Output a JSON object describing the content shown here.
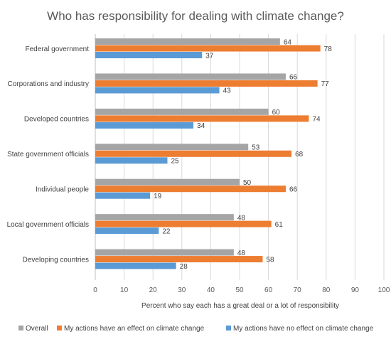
{
  "chart_data": {
    "type": "bar",
    "orientation": "horizontal",
    "title": "Who has responsibility for dealing with climate change?",
    "xlabel": "Percent who say each has a great deal or a lot of responsibility",
    "ylabel": "",
    "xlim": [
      0,
      100
    ],
    "xticks": [
      0,
      10,
      20,
      30,
      40,
      50,
      60,
      70,
      80,
      90,
      100
    ],
    "grid": "vertical",
    "legend_position": "bottom",
    "categories": [
      "Federal government",
      "Corporations and industry",
      "Developed countries",
      "State government officials",
      "Individual people",
      "Local government officials",
      "Developing countries"
    ],
    "series": [
      {
        "name": "Overall",
        "color": "#a5a5a5",
        "values": [
          64,
          66,
          60,
          53,
          50,
          48,
          48
        ]
      },
      {
        "name": "My actions have an effect on climate change",
        "color": "#ed7d31",
        "values": [
          78,
          77,
          74,
          68,
          66,
          61,
          58
        ]
      },
      {
        "name": "My actions have no effect on climate change",
        "color": "#5b9bd5",
        "values": [
          37,
          43,
          34,
          25,
          19,
          22,
          28
        ]
      }
    ]
  }
}
